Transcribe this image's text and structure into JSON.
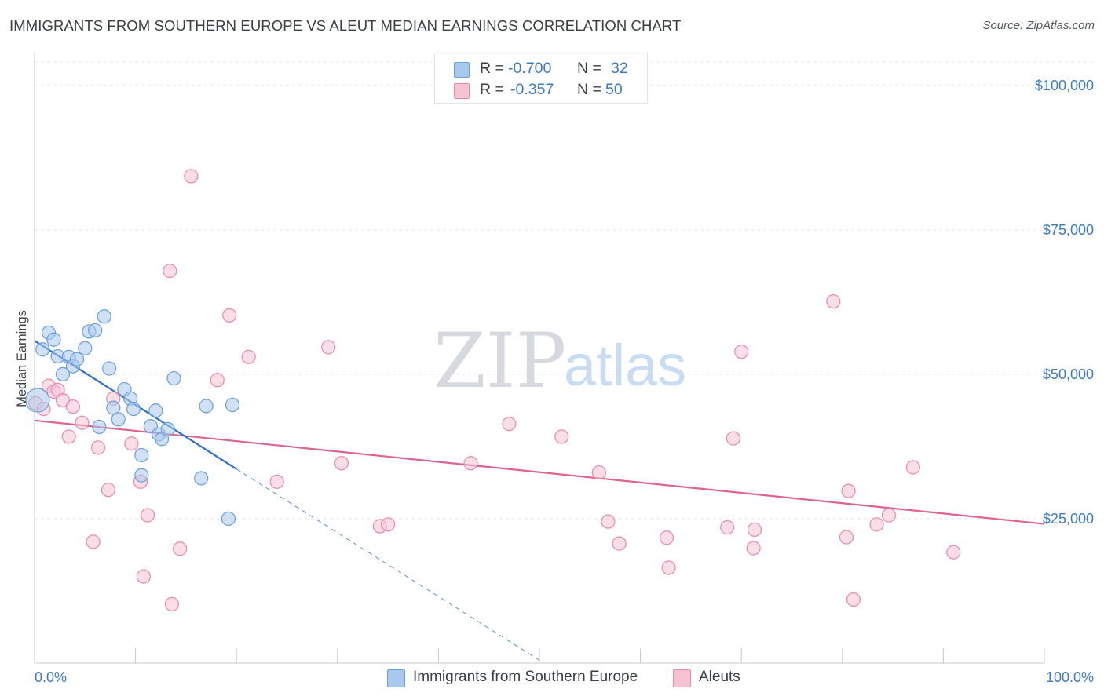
{
  "title": "IMMIGRANTS FROM SOUTHERN EUROPE VS ALEUT MEDIAN EARNINGS CORRELATION CHART",
  "source": "Source: ZipAtlas.com",
  "watermark": {
    "zip": "ZIP",
    "atlas": "atlas"
  },
  "legend": {
    "rows": [
      {
        "r_label": "R =",
        "r_value": "-0.700",
        "n_label": "N =",
        "n_value": "32"
      },
      {
        "r_label": "R =",
        "r_value": "-0.357",
        "n_label": "N =",
        "n_value": "50"
      }
    ]
  },
  "colors": {
    "blue_fill": "#a9c8ee",
    "blue_stroke": "#6a9fd8",
    "blue_line": "#2f6fca",
    "pink_fill": "#f6c3d3",
    "pink_stroke": "#e88aa8",
    "pink_line": "#e0628f",
    "tick_text": "#3d7ac4",
    "grid": "#e4e7eb"
  },
  "chart_data": {
    "type": "scatter",
    "title": "IMMIGRANTS FROM SOUTHERN EUROPE VS ALEUT MEDIAN EARNINGS CORRELATION CHART",
    "xlabel": "",
    "ylabel": "Median Earnings",
    "xlim": [
      0,
      100
    ],
    "ylim": [
      0,
      105000
    ],
    "x_ticks": [
      0,
      10,
      20,
      30,
      40,
      50,
      60,
      70,
      80,
      90,
      100
    ],
    "x_tick_labels": {
      "min": "0.0%",
      "max": "100.0%"
    },
    "y_ticks": [
      25000,
      50000,
      75000,
      100000
    ],
    "y_tick_labels": [
      "$25,000",
      "$50,000",
      "$75,000",
      "$100,000"
    ],
    "series": [
      {
        "name": "Immigrants from Southern Europe",
        "r": -0.7,
        "n": 32,
        "trend": {
          "x0": 0,
          "y0": 55800,
          "x1": 20,
          "y1": 33600,
          "dash_to_x": 50,
          "dash_to_y": 500
        },
        "points": [
          {
            "x": 0.3,
            "y": 45500,
            "big": true
          },
          {
            "x": 0.8,
            "y": 54300
          },
          {
            "x": 1.4,
            "y": 57200
          },
          {
            "x": 1.9,
            "y": 56000
          },
          {
            "x": 2.3,
            "y": 53100
          },
          {
            "x": 2.8,
            "y": 50000
          },
          {
            "x": 3.4,
            "y": 53000
          },
          {
            "x": 3.8,
            "y": 51400
          },
          {
            "x": 4.2,
            "y": 52600
          },
          {
            "x": 5.0,
            "y": 54500
          },
          {
            "x": 5.4,
            "y": 57400
          },
          {
            "x": 6.0,
            "y": 57600
          },
          {
            "x": 6.4,
            "y": 40900
          },
          {
            "x": 6.9,
            "y": 60000
          },
          {
            "x": 7.4,
            "y": 51000
          },
          {
            "x": 7.8,
            "y": 44200
          },
          {
            "x": 8.3,
            "y": 42200
          },
          {
            "x": 8.9,
            "y": 47400
          },
          {
            "x": 9.5,
            "y": 45800
          },
          {
            "x": 9.8,
            "y": 44000
          },
          {
            "x": 10.6,
            "y": 36000
          },
          {
            "x": 10.6,
            "y": 32500
          },
          {
            "x": 11.5,
            "y": 41000
          },
          {
            "x": 12.0,
            "y": 43700
          },
          {
            "x": 12.3,
            "y": 39600
          },
          {
            "x": 12.6,
            "y": 38800
          },
          {
            "x": 13.2,
            "y": 40500
          },
          {
            "x": 13.8,
            "y": 49300
          },
          {
            "x": 16.5,
            "y": 32000
          },
          {
            "x": 17.0,
            "y": 44500
          },
          {
            "x": 19.2,
            "y": 25000
          },
          {
            "x": 19.6,
            "y": 44700
          }
        ]
      },
      {
        "name": "Aleuts",
        "r": -0.357,
        "n": 50,
        "trend": {
          "x0": 0,
          "y0": 42000,
          "x1": 100,
          "y1": 24100
        },
        "points": [
          {
            "x": 0.1,
            "y": 45000
          },
          {
            "x": 0.9,
            "y": 44000
          },
          {
            "x": 1.4,
            "y": 48000
          },
          {
            "x": 1.9,
            "y": 47000
          },
          {
            "x": 2.3,
            "y": 47300
          },
          {
            "x": 2.8,
            "y": 45500
          },
          {
            "x": 3.4,
            "y": 39200
          },
          {
            "x": 3.8,
            "y": 44400
          },
          {
            "x": 4.7,
            "y": 41600
          },
          {
            "x": 5.8,
            "y": 21000
          },
          {
            "x": 6.3,
            "y": 37300
          },
          {
            "x": 7.3,
            "y": 30000
          },
          {
            "x": 7.8,
            "y": 45800
          },
          {
            "x": 9.6,
            "y": 38000
          },
          {
            "x": 10.5,
            "y": 31400
          },
          {
            "x": 10.8,
            "y": 15000
          },
          {
            "x": 11.2,
            "y": 25600
          },
          {
            "x": 13.4,
            "y": 67900
          },
          {
            "x": 13.6,
            "y": 10200
          },
          {
            "x": 14.4,
            "y": 19800
          },
          {
            "x": 15.5,
            "y": 84300
          },
          {
            "x": 18.1,
            "y": 49000
          },
          {
            "x": 19.3,
            "y": 60200
          },
          {
            "x": 21.2,
            "y": 53000
          },
          {
            "x": 24.0,
            "y": 31400
          },
          {
            "x": 29.1,
            "y": 54700
          },
          {
            "x": 30.4,
            "y": 34600
          },
          {
            "x": 34.2,
            "y": 23700
          },
          {
            "x": 35.0,
            "y": 24000
          },
          {
            "x": 43.2,
            "y": 34600
          },
          {
            "x": 47.0,
            "y": 41400
          },
          {
            "x": 52.2,
            "y": 39200
          },
          {
            "x": 55.9,
            "y": 33000
          },
          {
            "x": 56.8,
            "y": 24500
          },
          {
            "x": 57.9,
            "y": 20700
          },
          {
            "x": 62.6,
            "y": 21700
          },
          {
            "x": 62.8,
            "y": 16500
          },
          {
            "x": 68.6,
            "y": 23500
          },
          {
            "x": 69.2,
            "y": 38900
          },
          {
            "x": 70.0,
            "y": 53900
          },
          {
            "x": 71.2,
            "y": 19900
          },
          {
            "x": 71.3,
            "y": 23100
          },
          {
            "x": 79.1,
            "y": 62600
          },
          {
            "x": 80.4,
            "y": 21800
          },
          {
            "x": 80.6,
            "y": 29800
          },
          {
            "x": 81.1,
            "y": 11000
          },
          {
            "x": 83.4,
            "y": 24000
          },
          {
            "x": 84.6,
            "y": 25600
          },
          {
            "x": 87.0,
            "y": 33900
          },
          {
            "x": 91.0,
            "y": 19200
          }
        ]
      }
    ]
  }
}
